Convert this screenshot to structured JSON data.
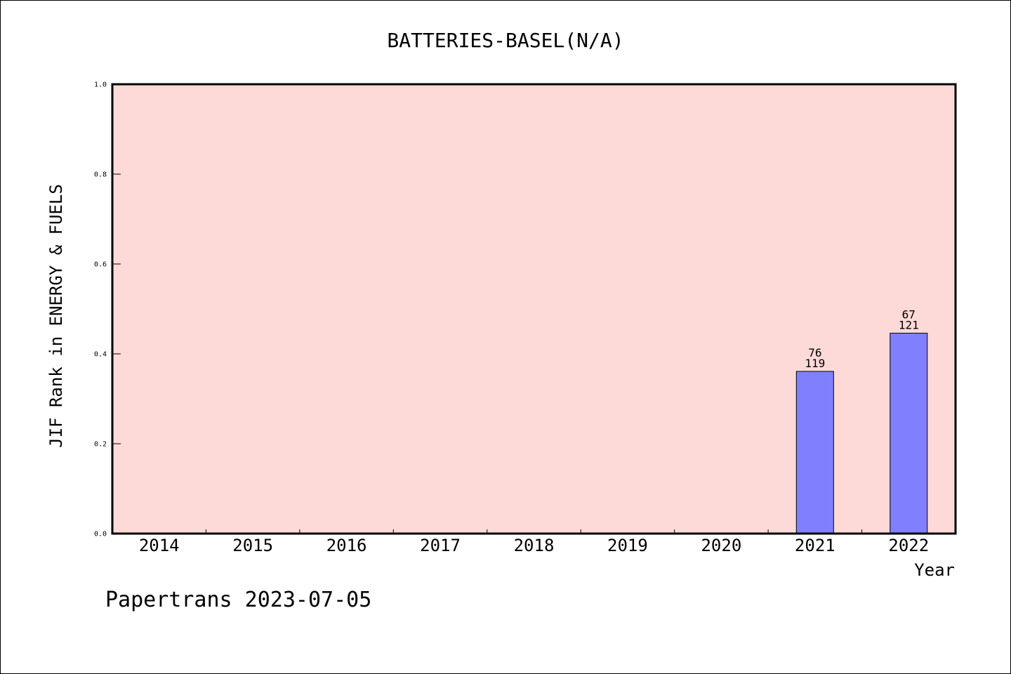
{
  "chart_data": {
    "type": "bar",
    "title": "BATTERIES-BASEL(N/A)",
    "xlabel": "Year",
    "ylabel": "JIF Rank in ENERGY & FUELS",
    "categories": [
      "2014",
      "2015",
      "2016",
      "2017",
      "2018",
      "2019",
      "2020",
      "2021",
      "2022"
    ],
    "values": [
      null,
      null,
      null,
      null,
      null,
      null,
      null,
      0.361,
      0.446
    ],
    "bar_labels": [
      null,
      null,
      null,
      null,
      null,
      null,
      null,
      {
        "rank": "76",
        "total": "119"
      },
      {
        "rank": "67",
        "total": "121"
      }
    ],
    "ylim": [
      0,
      1
    ],
    "yticks": [
      "0.0",
      "0.2",
      "0.4",
      "0.6",
      "0.8",
      "1.0"
    ],
    "grid": false,
    "colors": {
      "plot_bg": "#fddad7",
      "bar": "#8080ff"
    }
  },
  "footer": "Papertrans 2023-07-05"
}
